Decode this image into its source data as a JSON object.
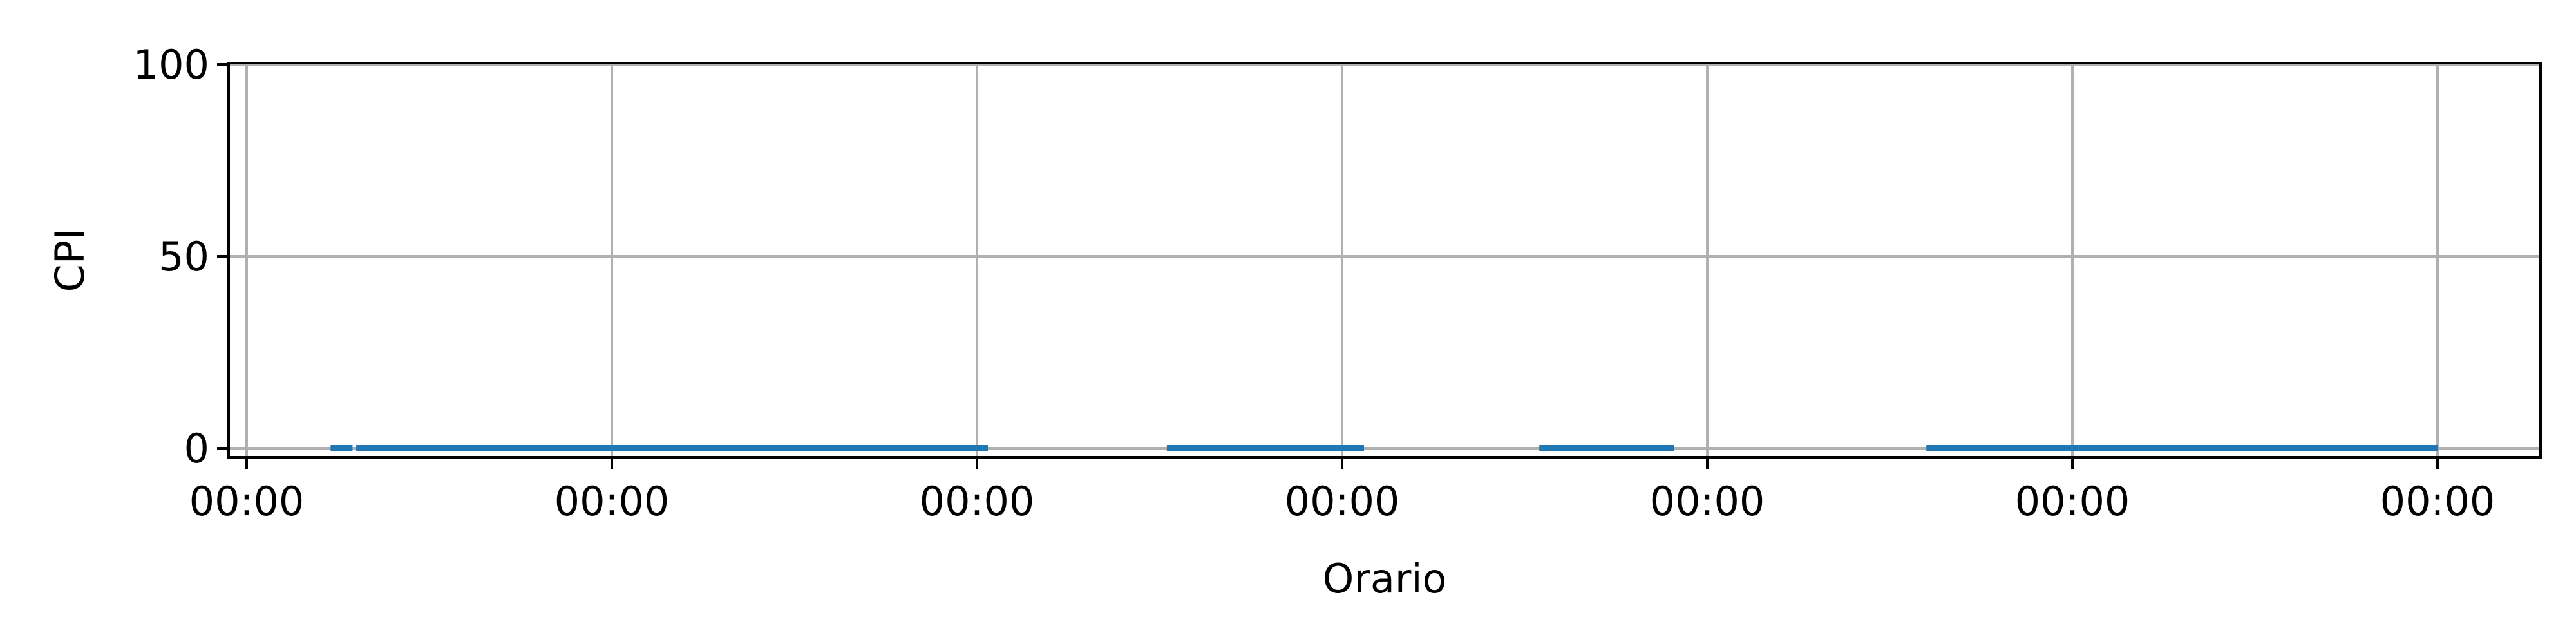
{
  "chart_data": {
    "type": "line",
    "xlabel": "Orario",
    "ylabel": "CPI",
    "ylim": [
      0,
      100
    ],
    "yticks": [
      0,
      50,
      100
    ],
    "xtick_labels": [
      "00:00",
      "00:00",
      "00:00",
      "00:00",
      "00:00",
      "00:00",
      "00:00"
    ],
    "xlim": [
      0,
      6
    ],
    "grid": true,
    "series": [
      {
        "color": "#1f77b4",
        "segments": [
          {
            "x": [
              0.23,
              0.29
            ],
            "y": [
              0,
              0
            ]
          },
          {
            "x": [
              0.3,
              2.03
            ],
            "y": [
              0,
              0
            ]
          },
          {
            "x": [
              2.52,
              3.06
            ],
            "y": [
              0,
              0
            ]
          },
          {
            "x": [
              3.54,
              3.91
            ],
            "y": [
              0,
              0
            ]
          },
          {
            "x": [
              4.6,
              6.0
            ],
            "y": [
              0,
              0
            ]
          }
        ]
      }
    ]
  }
}
